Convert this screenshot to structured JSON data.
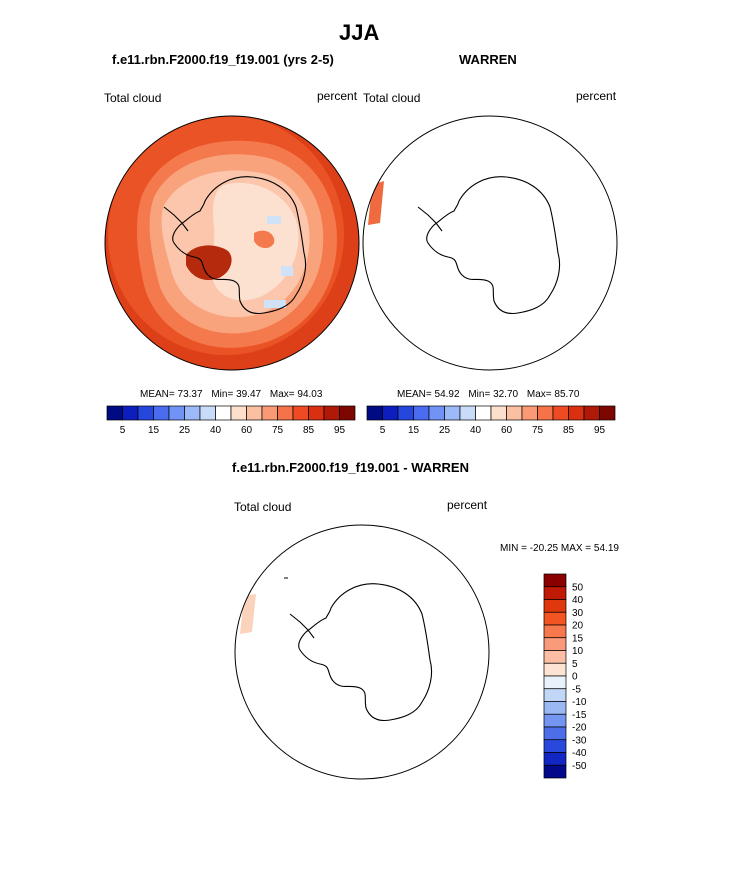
{
  "title": "JJA",
  "panels": [
    {
      "subtitle": "f.e11.rbn.F2000.f19_f19.001 (yrs 2-5)",
      "left_label": "Total cloud",
      "right_label": "percent",
      "stats": {
        "mean_label": "MEAN=",
        "mean": "73.37",
        "min_label": "Min=",
        "min": "39.47",
        "max_label": "Max=",
        "max": "94.03"
      }
    },
    {
      "subtitle": "WARREN",
      "left_label": "Total cloud",
      "right_label": "percent",
      "stats": {
        "mean_label": "MEAN=",
        "mean": "54.92",
        "min_label": "Min=",
        "min": "32.70",
        "max_label": "Max=",
        "max": "85.70"
      }
    }
  ],
  "diff_panel": {
    "subtitle": "f.e11.rbn.F2000.f19_f19.001 - WARREN",
    "left_label": "Total cloud",
    "right_label": "percent",
    "minmax": "MIN = -20.25 MAX =  54.19"
  },
  "colorbar_horizontal": {
    "colors": [
      "#000a82",
      "#0c1fbe",
      "#2547de",
      "#4a6cf0",
      "#7093f5",
      "#9dbaf8",
      "#c8dcfa",
      "#ffffff",
      "#fde0cc",
      "#fbbfa2",
      "#f99a74",
      "#f6734a",
      "#ee4b24",
      "#d93012",
      "#b01808",
      "#7d0600"
    ],
    "tick_labels": [
      "5",
      "15",
      "25",
      "40",
      "60",
      "75",
      "85",
      "95"
    ]
  },
  "colorbar_vertical": {
    "colors": [
      "#8a0000",
      "#c01a06",
      "#e0380e",
      "#f25422",
      "#f6784c",
      "#f99b7a",
      "#fbbea4",
      "#fde3d2",
      "#e9f1fb",
      "#c2d6f7",
      "#9ab8f4",
      "#7495f0",
      "#4d6ee8",
      "#2a49dc",
      "#1226c4",
      "#02098a"
    ],
    "tick_labels": [
      "50",
      "40",
      "30",
      "20",
      "15",
      "10",
      "5",
      "0",
      "-5",
      "-10",
      "-15",
      "-20",
      "-30",
      "-40",
      "-50"
    ]
  },
  "fill_colors": {
    "ocean_model": "#ea5326",
    "ocean_outer": "#dd3f18",
    "ring_mid": "#f47a4d",
    "ring_light": "#f9a37d",
    "land_pale": "#fde1d0",
    "land_light": "#fbc6ab",
    "land_blue": "#cfe2f8",
    "dark_patch": "#b52a0c",
    "warren_strip": "#f06a40",
    "diff_strip": "#fbd3bc"
  }
}
